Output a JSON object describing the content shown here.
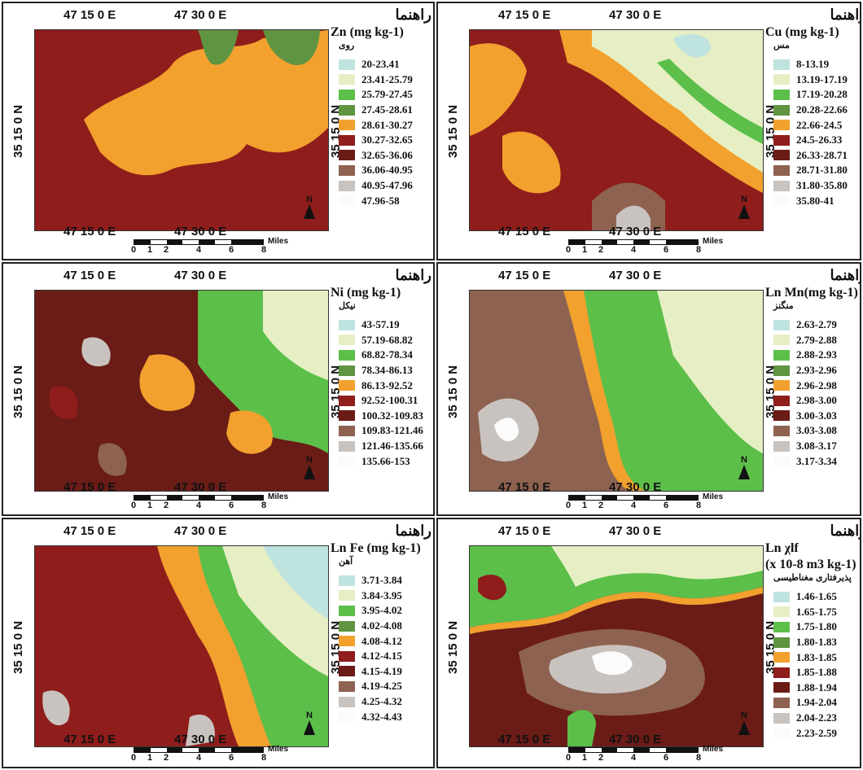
{
  "coords": {
    "lon_a": "47 15 0 E",
    "lon_b": "47 30 0 E",
    "lat": "35 15 0 N",
    "scale_unit": "Miles",
    "scale_ticks": [
      "0",
      "1",
      "2",
      "4",
      "6",
      "8"
    ]
  },
  "north_label": "N",
  "panels": [
    {
      "legend_title": "راهنما",
      "variable": "Zn (mg kg-1)",
      "variable_fa": "روی",
      "classes": [
        "20-23.41",
        "23.41-25.79",
        "25.79-27.45",
        "27.45-28.61",
        "28.61-30.27",
        "30.27-32.65",
        "32.65-36.06",
        "36.06-40.95",
        "40.95-47.96",
        "47.96-58"
      ]
    },
    {
      "legend_title": "راهنما",
      "variable": "Cu (mg kg-1)",
      "variable_fa": "مس",
      "classes": [
        "8-13.19",
        "13.19-17.19",
        "17.19-20.28",
        "20.28-22.66",
        "22.66-24.5",
        "24.5-26.33",
        "26.33-28.71",
        "28.71-31.80",
        "31.80-35.80",
        "35.80-41"
      ]
    },
    {
      "legend_title": "راهنما",
      "variable": "Ni (mg kg-1)",
      "variable_fa": "نیکل",
      "classes": [
        "43-57.19",
        "57.19-68.82",
        "68.82-78.34",
        "78.34-86.13",
        "86.13-92.52",
        "92.52-100.31",
        "100.32-109.83",
        "109.83-121.46",
        "121.46-135.66",
        "135.66-153"
      ]
    },
    {
      "legend_title": "راهنما",
      "variable": "Ln Mn(mg kg-1)",
      "variable_fa": "منگنز",
      "classes": [
        "2.63-2.79",
        "2.79-2.88",
        "2.88-2.93",
        "2.93-2.96",
        "2.96-2.98",
        "2.98-3.00",
        "3.00-3.03",
        "3.03-3.08",
        "3.08-3.17",
        "3.17-3.34"
      ]
    },
    {
      "legend_title": "راهنما",
      "variable": "Ln Fe (mg kg-1)",
      "variable_fa": "آهن",
      "classes": [
        "3.71-3.84",
        "3.84-3.95",
        "3.95-4.02",
        "4.02-4.08",
        "4.08-4.12",
        "4.12-4.15",
        "4.15-4.19",
        "4.19-4.25",
        "4.25-4.32",
        "4.32-4.43"
      ]
    },
    {
      "legend_title": "راهنما",
      "variable": "Ln χlf",
      "variable_fa": "پذیرفتاری مغناطیسی",
      "variable_unit": "(x 10-8 m3 kg-1)",
      "classes": [
        "1.46-1.65",
        "1.65-1.75",
        "1.75-1.80",
        "1.80-1.83",
        "1.83-1.85",
        "1.85-1.88",
        "1.88-1.94",
        "1.94-2.04",
        "2.04-2.23",
        "2.23-2.59"
      ]
    }
  ],
  "palette": [
    "#bfe3df",
    "#e6efc4",
    "#5cbf4a",
    "#5f9441",
    "#f2a12e",
    "#8f1d1b",
    "#6b1c17",
    "#8e6250",
    "#c9c3bf",
    "#fbfbfb"
  ]
}
